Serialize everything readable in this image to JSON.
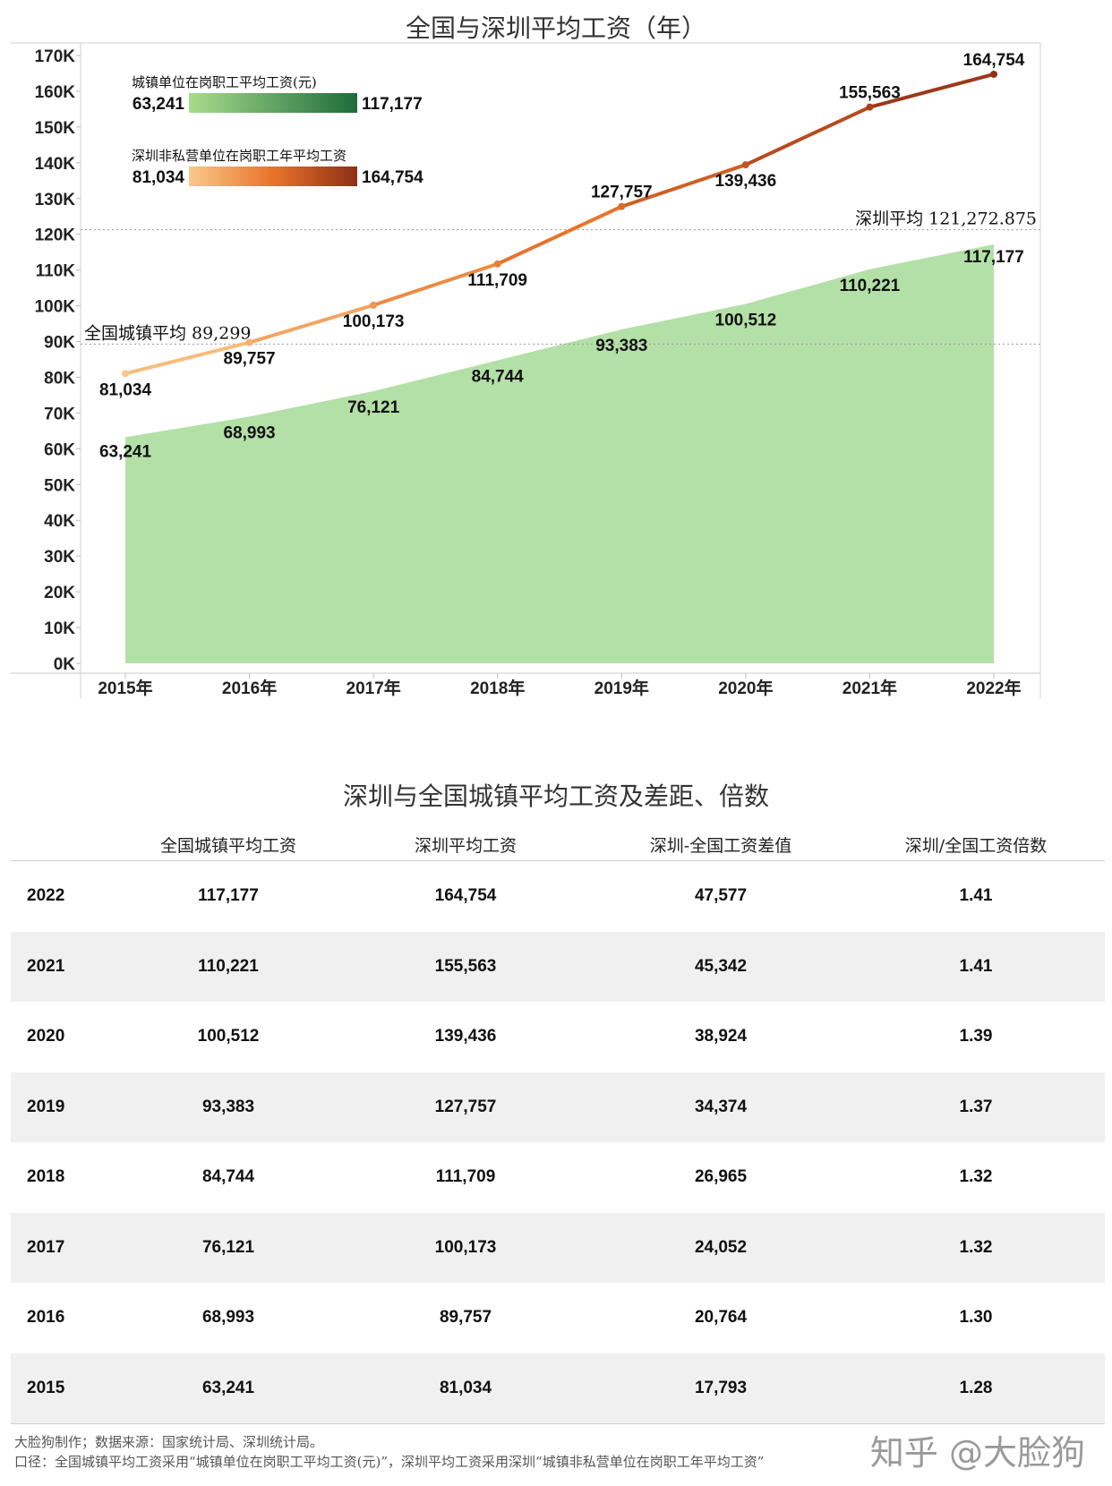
{
  "chart_title": "全国与深圳平均工资（年）",
  "table_title": "深圳与全国城镇平均工资及差距、倍数",
  "chart_data": {
    "type": "area",
    "title": "全国与深圳平均工资（年）",
    "categories": [
      "2015年",
      "2016年",
      "2017年",
      "2018年",
      "2019年",
      "2020年",
      "2021年",
      "2022年"
    ],
    "ylim": [
      0,
      170000
    ],
    "y_ticks": [
      "0K",
      "10K",
      "20K",
      "30K",
      "40K",
      "50K",
      "60K",
      "70K",
      "80K",
      "90K",
      "100K",
      "110K",
      "120K",
      "130K",
      "140K",
      "150K",
      "160K",
      "170K"
    ],
    "series": [
      {
        "name": "城镇单位在岗职工平均工资(元)",
        "type": "area",
        "values": [
          63241,
          68993,
          76121,
          84744,
          93383,
          100512,
          110221,
          117177
        ],
        "labels": [
          "63,241",
          "68,993",
          "76,121",
          "84,744",
          "93,383",
          "100,512",
          "110,221",
          "117,177"
        ],
        "color": "#b3e0a6"
      },
      {
        "name": "深圳非私营单位在岗职工年平均工资",
        "type": "line",
        "values": [
          81034,
          89757,
          100173,
          111709,
          127757,
          139436,
          155563,
          164754
        ],
        "labels": [
          "81,034",
          "89,757",
          "100,173",
          "111,709",
          "127,757",
          "139,436",
          "155,563",
          "164,754"
        ],
        "color_start": "#f6b26b",
        "color_end": "#a3401a"
      }
    ],
    "reference_lines": [
      {
        "label": "全国城镇平均 89,299",
        "value": 89299
      },
      {
        "label": "深圳平均 121,272.875",
        "value": 121272.875
      }
    ],
    "legend": [
      {
        "title": "城镇单位在岗职工平均工资(元)",
        "min": "63,241",
        "max": "117,177",
        "colors": [
          "#a8dc8c",
          "#1e6b3a"
        ]
      },
      {
        "title": "深圳非私营单位在岗职工年平均工资",
        "min": "81,034",
        "max": "164,754",
        "colors": [
          "#f9c88a",
          "#8e2f16"
        ]
      }
    ],
    "legend_position": "top-left",
    "grid": false
  },
  "table": {
    "headers": [
      "全国城镇平均工资",
      "深圳平均工资",
      "深圳-全国工资差值",
      "深圳/全国工资倍数"
    ],
    "rows": [
      {
        "year": "2022",
        "national": "117,177",
        "shenzhen": "164,754",
        "diff": "47,577",
        "ratio": "1.41"
      },
      {
        "year": "2021",
        "national": "110,221",
        "shenzhen": "155,563",
        "diff": "45,342",
        "ratio": "1.41"
      },
      {
        "year": "2020",
        "national": "100,512",
        "shenzhen": "139,436",
        "diff": "38,924",
        "ratio": "1.39"
      },
      {
        "year": "2019",
        "national": "93,383",
        "shenzhen": "127,757",
        "diff": "34,374",
        "ratio": "1.37"
      },
      {
        "year": "2018",
        "national": "84,744",
        "shenzhen": "111,709",
        "diff": "26,965",
        "ratio": "1.32"
      },
      {
        "year": "2017",
        "national": "76,121",
        "shenzhen": "100,173",
        "diff": "24,052",
        "ratio": "1.32"
      },
      {
        "year": "2016",
        "national": "68,993",
        "shenzhen": "89,757",
        "diff": "20,764",
        "ratio": "1.30"
      },
      {
        "year": "2015",
        "national": "63,241",
        "shenzhen": "81,034",
        "diff": "17,793",
        "ratio": "1.28"
      }
    ]
  },
  "footer": {
    "line1": "大脸狗制作；数据来源：国家统计局、深圳统计局。",
    "line2": "口径：全国城镇平均工资采用“城镇单位在岗职工平均工资(元)”，深圳平均工资采用深圳“城镇非私营单位在岗职工年平均工资”",
    "watermark": "知乎 @大脸狗"
  }
}
